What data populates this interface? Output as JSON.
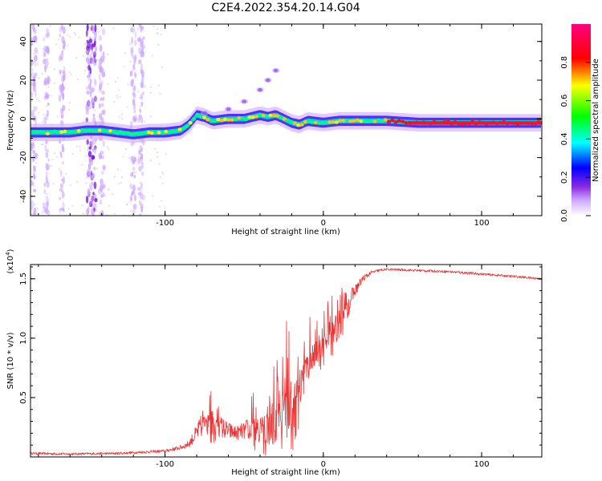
{
  "chart_data": [
    {
      "type": "heatmap",
      "title": "C2E4.2022.354.20.14.G04",
      "xlabel": "Height of straight line (km)",
      "ylabel": "Frequency (Hz)",
      "xlim": [
        -185,
        138
      ],
      "ylim": [
        -50,
        49
      ],
      "xticks": [
        -100,
        0,
        100
      ],
      "xtick_labels": [
        "-100",
        "0",
        "100"
      ],
      "yticks": [
        -40,
        -20,
        0,
        20,
        40
      ],
      "ytick_labels": [
        "-40",
        "-20",
        "0",
        "20",
        "40"
      ],
      "colorbar": {
        "label": "Normalized spectral amplitude",
        "range": [
          0,
          1
        ],
        "ticks": [
          0.0,
          0.2,
          0.4,
          0.6,
          0.8
        ],
        "tick_labels": [
          "0.0",
          "0.2",
          "0.4",
          "0.6",
          "0.8"
        ],
        "colors": [
          "#ffffff",
          "#c080ff",
          "#7000ff",
          "#0000ff",
          "#00ffff",
          "#00ff00",
          "#ffff00",
          "#ff8000",
          "#ff0000",
          "#ff00a0"
        ]
      },
      "ridge": {
        "x": [
          -185,
          -160,
          -150,
          -140,
          -130,
          -120,
          -110,
          -100,
          -90,
          -85,
          -80,
          -75,
          -70,
          -60,
          -50,
          -40,
          -35,
          -30,
          -25,
          -20,
          -15,
          -10,
          0,
          10,
          20,
          40,
          60,
          80,
          100,
          120,
          138
        ],
        "y": [
          -7,
          -7,
          -6,
          -6,
          -7,
          -8,
          -7,
          -7,
          -6,
          -3,
          2,
          1,
          -1,
          0,
          0,
          2,
          1,
          2,
          0,
          -2,
          -3,
          -1,
          -2,
          -1,
          -1,
          -1,
          -2,
          -2,
          -2,
          -2,
          -2
        ]
      },
      "side_branch": {
        "x": [
          -75,
          -60,
          -50,
          -40,
          -35,
          -30
        ],
        "y": [
          3,
          5,
          9,
          15,
          20,
          25
        ]
      },
      "noise_columns_x": [
        -183,
        -175,
        -165,
        -148,
        -145,
        -140,
        -120,
        -115
      ]
    },
    {
      "type": "line",
      "xlabel": "Height of straight line (km)",
      "ylabel": "SNR (10 * v/v)",
      "y_multiplier": "(x10",
      "y_multiplier_exp": "4",
      "y_multiplier_close": ")",
      "xlim": [
        -185,
        138
      ],
      "ylim": [
        0,
        16200
      ],
      "xticks": [
        -100,
        0,
        100
      ],
      "xtick_labels": [
        "-100",
        "0",
        "100"
      ],
      "yticks": [
        5000,
        10000,
        15000
      ],
      "ytick_labels": [
        "0.5",
        "1.0",
        "1.5"
      ],
      "series_color": "#ee3333",
      "envelope": {
        "x": [
          -185,
          -160,
          -130,
          -100,
          -90,
          -85,
          -80,
          -75,
          -70,
          -65,
          -60,
          -55,
          -50,
          -45,
          -40,
          -35,
          -30,
          -25,
          -22,
          -18,
          -15,
          -10,
          -5,
          0,
          5,
          10,
          15,
          18,
          20,
          25,
          30,
          35,
          40,
          60,
          80,
          90,
          100,
          110,
          120,
          138
        ],
        "base": [
          300,
          250,
          300,
          500,
          800,
          1100,
          2000,
          3000,
          2800,
          2500,
          2200,
          2000,
          2200,
          2500,
          2600,
          2700,
          3200,
          4000,
          4200,
          4500,
          6000,
          8000,
          9000,
          9500,
          10500,
          11000,
          12500,
          13500,
          14000,
          15000,
          15500,
          15700,
          15800,
          15700,
          15600,
          15500,
          15400,
          15300,
          15200,
          15000
        ],
        "amp": [
          200,
          200,
          200,
          250,
          400,
          600,
          1500,
          2500,
          2500,
          2000,
          1500,
          1200,
          1500,
          2500,
          3500,
          4000,
          5000,
          6000,
          7000,
          7000,
          4000,
          3000,
          3000,
          3000,
          3000,
          2500,
          2000,
          1500,
          1000,
          600,
          300,
          250,
          200,
          200,
          200,
          250,
          200,
          200,
          200,
          200
        ]
      }
    }
  ]
}
